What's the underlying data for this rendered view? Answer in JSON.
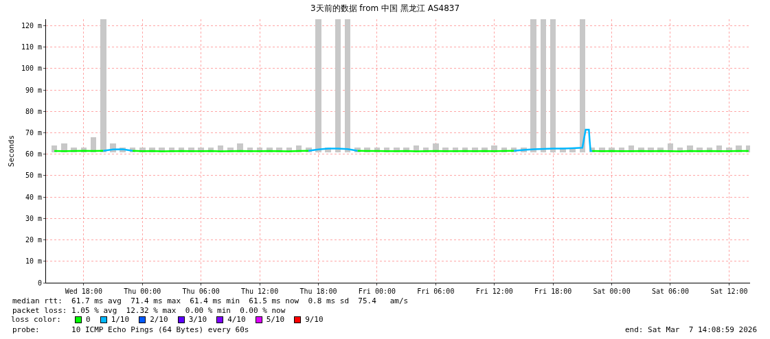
{
  "chart_data": {
    "type": "line",
    "title": "3天前的数据 from 中国 黑龙江 AS4837",
    "ylabel": "Seconds",
    "legend_title": "loss color:",
    "xlim": [
      "2026-03-04T14:09",
      "2026-03-07T14:09"
    ],
    "xticks": [
      {
        "value": "2026-03-04T18:00",
        "label": "Wed 18:00"
      },
      {
        "value": "2026-03-05T00:00",
        "label": "Thu 00:00"
      },
      {
        "value": "2026-03-05T06:00",
        "label": "Thu 06:00"
      },
      {
        "value": "2026-03-05T12:00",
        "label": "Thu 12:00"
      },
      {
        "value": "2026-03-05T18:00",
        "label": "Thu 18:00"
      },
      {
        "value": "2026-03-06T00:00",
        "label": "Fri 00:00"
      },
      {
        "value": "2026-03-06T06:00",
        "label": "Fri 06:00"
      },
      {
        "value": "2026-03-06T12:00",
        "label": "Fri 12:00"
      },
      {
        "value": "2026-03-06T18:00",
        "label": "Fri 18:00"
      },
      {
        "value": "2026-03-07T00:00",
        "label": "Sat 00:00"
      },
      {
        "value": "2026-03-07T06:00",
        "label": "Sat 06:00"
      },
      {
        "value": "2026-03-07T12:00",
        "label": "Sat 12:00"
      }
    ],
    "ylim": [
      0,
      123
    ],
    "yticks": [
      0,
      {
        "value": 10,
        "label": "10 m"
      },
      {
        "value": 20,
        "label": "20 m"
      },
      {
        "value": 30,
        "label": "30 m"
      },
      {
        "value": 40,
        "label": "40 m"
      },
      {
        "value": 50,
        "label": "50 m"
      },
      {
        "value": 60,
        "label": "60 m"
      },
      {
        "value": 70,
        "label": "70 m"
      },
      {
        "value": 80,
        "label": "80 m"
      },
      {
        "value": 90,
        "label": "90 m"
      },
      {
        "value": 100,
        "label": "100 m"
      },
      {
        "value": 110,
        "label": "110 m"
      },
      {
        "value": 120,
        "label": "120 m"
      }
    ],
    "grid": true,
    "legend": "bottom left",
    "marker": "none",
    "line_style": "solid",
    "series": [
      {
        "type": "bar",
        "color": "#c8c8c8",
        "base": [
          61,
          61,
          61,
          61,
          61,
          61,
          61,
          61,
          61,
          61,
          61,
          61,
          61,
          61,
          61,
          61,
          61,
          61,
          61,
          61,
          61,
          61,
          61,
          61,
          61,
          61,
          61,
          61,
          61,
          61,
          61,
          61,
          61,
          61,
          61,
          61,
          61,
          61,
          61,
          61,
          61,
          61,
          61,
          61,
          61,
          61,
          61,
          61,
          61,
          61,
          61,
          61,
          61,
          61,
          61,
          61,
          61,
          61,
          61,
          61,
          61,
          61,
          61,
          61,
          61,
          61,
          61,
          61,
          61,
          61,
          61,
          61
        ],
        "x": [
          "2026-03-04T15:00",
          "2026-03-04T16:00",
          "2026-03-04T17:00",
          "2026-03-04T18:00",
          "2026-03-04T19:00",
          "2026-03-04T20:00",
          "2026-03-04T21:00",
          "2026-03-04T22:00",
          "2026-03-04T23:00",
          "2026-03-05T00:00",
          "2026-03-05T01:00",
          "2026-03-05T02:00",
          "2026-03-05T03:00",
          "2026-03-05T04:00",
          "2026-03-05T05:00",
          "2026-03-05T06:00",
          "2026-03-05T07:00",
          "2026-03-05T08:00",
          "2026-03-05T09:00",
          "2026-03-05T10:00",
          "2026-03-05T11:00",
          "2026-03-05T12:00",
          "2026-03-05T13:00",
          "2026-03-05T14:00",
          "2026-03-05T15:00",
          "2026-03-05T16:00",
          "2026-03-05T17:00",
          "2026-03-05T18:00",
          "2026-03-05T19:00",
          "2026-03-05T20:00",
          "2026-03-05T21:00",
          "2026-03-05T22:00",
          "2026-03-05T23:00",
          "2026-03-06T00:00",
          "2026-03-06T01:00",
          "2026-03-06T02:00",
          "2026-03-06T03:00",
          "2026-03-06T04:00",
          "2026-03-06T05:00",
          "2026-03-06T06:00",
          "2026-03-06T07:00",
          "2026-03-06T08:00",
          "2026-03-06T09:00",
          "2026-03-06T10:00",
          "2026-03-06T11:00",
          "2026-03-06T12:00",
          "2026-03-06T13:00",
          "2026-03-06T14:00",
          "2026-03-06T15:00",
          "2026-03-06T16:00",
          "2026-03-06T17:00",
          "2026-03-06T18:00",
          "2026-03-06T19:00",
          "2026-03-06T20:00",
          "2026-03-06T21:00",
          "2026-03-06T22:00",
          "2026-03-06T23:00",
          "2026-03-07T00:00",
          "2026-03-07T01:00",
          "2026-03-07T02:00",
          "2026-03-07T03:00",
          "2026-03-07T04:00",
          "2026-03-07T05:00",
          "2026-03-07T06:00",
          "2026-03-07T07:00",
          "2026-03-07T08:00",
          "2026-03-07T09:00",
          "2026-03-07T10:00",
          "2026-03-07T11:00",
          "2026-03-07T12:00",
          "2026-03-07T13:00",
          "2026-03-07T14:00"
        ],
        "values": [
          3,
          4,
          2,
          2,
          7,
          62,
          4,
          2,
          2,
          2,
          2,
          2,
          2,
          2,
          2,
          2,
          2,
          3,
          2,
          4,
          2,
          2,
          2,
          2,
          2,
          3,
          2,
          62,
          2,
          62,
          62,
          2,
          2,
          2,
          2,
          2,
          2,
          3,
          2,
          4,
          2,
          2,
          2,
          2,
          2,
          3,
          2,
          2,
          2,
          62,
          62,
          62,
          2,
          2,
          62,
          2,
          2,
          2,
          2,
          3,
          2,
          2,
          2,
          4,
          2,
          3,
          2,
          2,
          3,
          2,
          3,
          3
        ]
      },
      {
        "name": "0",
        "color": "#00ff00",
        "x": [
          "2026-03-04T15:00",
          "2026-03-04T16:00",
          "2026-03-04T17:00",
          "2026-03-04T18:00",
          "2026-03-04T19:00",
          "2026-03-04T20:00",
          "2026-03-04T21:00",
          "2026-03-04T22:00",
          "2026-03-04T23:00",
          "2026-03-05T00:00",
          "2026-03-05T01:00",
          "2026-03-05T02:00",
          "2026-03-05T03:00",
          "2026-03-05T04:00",
          "2026-03-05T05:00",
          "2026-03-05T06:00",
          "2026-03-05T07:00",
          "2026-03-05T08:00",
          "2026-03-05T09:00",
          "2026-03-05T10:00",
          "2026-03-05T11:00",
          "2026-03-05T12:00",
          "2026-03-05T13:00",
          "2026-03-05T14:00",
          "2026-03-05T15:00",
          "2026-03-05T16:00",
          "2026-03-05T17:00",
          "2026-03-05T18:00",
          "2026-03-05T19:00",
          "2026-03-05T20:00",
          "2026-03-05T21:00",
          "2026-03-05T22:00",
          "2026-03-05T23:00",
          "2026-03-06T00:00",
          "2026-03-06T01:00",
          "2026-03-06T02:00",
          "2026-03-06T03:00",
          "2026-03-06T04:00",
          "2026-03-06T05:00",
          "2026-03-06T06:00",
          "2026-03-06T07:00",
          "2026-03-06T08:00",
          "2026-03-06T09:00",
          "2026-03-06T10:00",
          "2026-03-06T11:00",
          "2026-03-06T12:00",
          "2026-03-06T13:00",
          "2026-03-06T14:00",
          "2026-03-06T15:00",
          "2026-03-06T16:00",
          "2026-03-06T17:00",
          "2026-03-06T18:00",
          "2026-03-06T19:00",
          "2026-03-06T20:00",
          "2026-03-06T21:00",
          "2026-03-06T22:00",
          "2026-03-06T23:00",
          "2026-03-07T00:00",
          "2026-03-07T01:00",
          "2026-03-07T02:00",
          "2026-03-07T03:00",
          "2026-03-07T04:00",
          "2026-03-07T05:00",
          "2026-03-07T06:00",
          "2026-03-07T07:00",
          "2026-03-07T08:00",
          "2026-03-07T09:00",
          "2026-03-07T10:00",
          "2026-03-07T11:00",
          "2026-03-07T12:00",
          "2026-03-07T13:00",
          "2026-03-07T14:00"
        ],
        "values": [
          61.5,
          61.4,
          61.5,
          61.6,
          61.5,
          61.6,
          null,
          null,
          61.6,
          61.4,
          61.5,
          61.3,
          61.4,
          61.5,
          61.4,
          61.4,
          61.5,
          61.3,
          61.4,
          61.5,
          61.4,
          61.4,
          61.5,
          61.4,
          61.3,
          61.5,
          61.6,
          null,
          null,
          null,
          null,
          61.6,
          61.5,
          61.5,
          61.4,
          61.4,
          61.5,
          61.3,
          61.4,
          61.5,
          61.4,
          61.4,
          61.5,
          61.4,
          61.5,
          61.4,
          61.5,
          61.6,
          null,
          null,
          null,
          null,
          null,
          null,
          null,
          61.5,
          61.4,
          61.5,
          61.4,
          61.4,
          61.5,
          61.4,
          61.5,
          61.4,
          61.3,
          61.5,
          61.4,
          61.5,
          61.4,
          61.4,
          61.5,
          61.5
        ]
      },
      {
        "name": "1/10",
        "color": "#00b8ff",
        "x": [
          "2026-03-04T20:00",
          "2026-03-04T21:00",
          "2026-03-04T22:00",
          "2026-03-04T23:00",
          "2026-03-05T12:00",
          "2026-03-05T17:00",
          "2026-03-05T18:00",
          "2026-03-05T19:00",
          "2026-03-05T20:00",
          "2026-03-05T21:00",
          "2026-03-05T22:00",
          "2026-03-06T12:00",
          "2026-03-06T14:00",
          "2026-03-06T15:00",
          "2026-03-06T16:00",
          "2026-03-06T17:00",
          "2026-03-06T18:00",
          "2026-03-06T19:00",
          "2026-03-06T20:00",
          "2026-03-06T21:00",
          "2026-03-06T21:20",
          "2026-03-06T21:40",
          "2026-03-06T21:45",
          "2026-03-06T21:50",
          "2026-03-06T22:00"
        ],
        "values": [
          61.6,
          62.2,
          62.3,
          61.6,
          null,
          61.6,
          62.2,
          62.6,
          62.6,
          62.4,
          61.6,
          null,
          61.6,
          62.0,
          62.3,
          62.5,
          62.6,
          62.6,
          62.8,
          63.0,
          71.4,
          71.4,
          66.0,
          61.5,
          61.5
        ]
      },
      {
        "name": "2/10",
        "color": "#0059ff"
      },
      {
        "name": "3/10",
        "color": "#5e00ff"
      },
      {
        "name": "4/10",
        "color": "#7e00ff"
      },
      {
        "name": "5/10",
        "color": "#dd00ff"
      },
      {
        "name": "9/10",
        "color": "#ff0000"
      }
    ],
    "annotations": [
      "median rtt:  61.7 ms avg  71.4 ms max  61.4 ms min  61.5 ms now  0.8 ms sd  75.4   am/s",
      "packet loss: 1.05 % avg  12.32 % max  0.00 % min  0.00 % now",
      "probe:       10 ICMP Echo Pings (64 Bytes) every 60s",
      "end: Sat Mar  7 14:08:59 2026"
    ]
  }
}
